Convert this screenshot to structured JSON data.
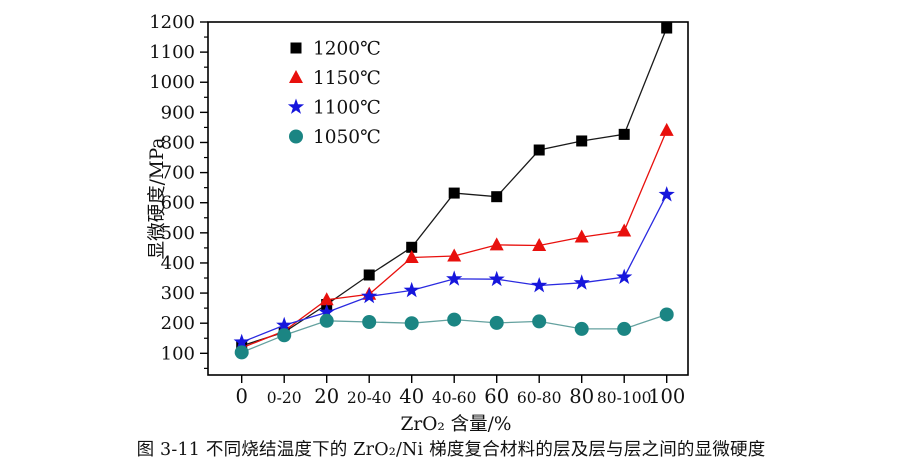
{
  "caption": "图 3-11  不同烧结温度下的 ZrO₂/Ni 梯度复合材料的层及层与层之间的显微硬度",
  "chart_data": {
    "type": "line",
    "title": "",
    "xlabel": "ZrO₂ 含量/%",
    "ylabel": "显微硬度/MPa",
    "categories": [
      "0",
      "0-20",
      "20",
      "20-40",
      "40",
      "40-60",
      "60",
      "60-80",
      "80",
      "80-100",
      "100"
    ],
    "y_ticks": [
      100,
      200,
      300,
      400,
      500,
      600,
      700,
      800,
      900,
      1000,
      1100,
      1200
    ],
    "y_minor_step": 50,
    "ylim": [
      28,
      1200
    ],
    "grid": false,
    "legend_position": "top-left-inside",
    "series": [
      {
        "name": "1200℃",
        "marker": "square",
        "color": "#000000",
        "line_color": "#1a1a1a",
        "values": [
          125,
          170,
          262,
          360,
          452,
          632,
          620,
          775,
          805,
          827,
          1180
        ]
      },
      {
        "name": "1150℃",
        "marker": "triangle",
        "color": "#e8100d",
        "line_color": "#e8100d",
        "values": [
          118,
          174,
          278,
          296,
          418,
          423,
          460,
          458,
          486,
          506,
          840
        ]
      },
      {
        "name": "1100℃",
        "marker": "star",
        "color": "#1616dc",
        "line_color": "#2a2ae0",
        "values": [
          137,
          193,
          236,
          289,
          309,
          347,
          346,
          325,
          334,
          353,
          627
        ]
      },
      {
        "name": "1050℃",
        "marker": "circle",
        "color": "#1b8583",
        "line_color": "#64a19f",
        "values": [
          103,
          160,
          208,
          204,
          200,
          212,
          201,
          206,
          181,
          181,
          229
        ]
      }
    ]
  }
}
